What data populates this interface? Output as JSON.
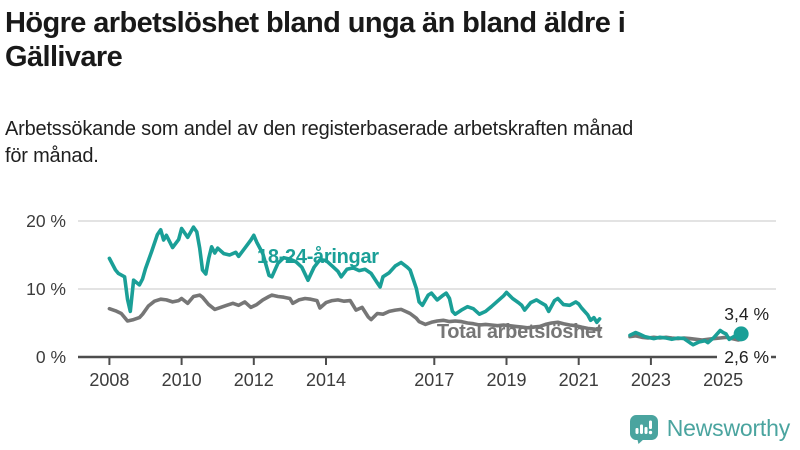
{
  "header": {
    "title": "Högre arbetslöshet bland unga än bland äldre i\nGällivare",
    "subtitle": "Arbetssökande som andel av den registerbaserade arbetskraften månad\nför månad."
  },
  "chart_data": {
    "type": "line",
    "title": "Högre arbetslöshet bland unga än bland äldre i Gällivare",
    "xlabel": "",
    "ylabel": "",
    "x_axis": {
      "tick_years": [
        2008,
        2010,
        2012,
        2014,
        2017,
        2019,
        2021,
        2023,
        2025
      ],
      "tick_labels": [
        "2008",
        "2010",
        "2012",
        "2014",
        "2017",
        "2019",
        "2021",
        "2023",
        "2025"
      ],
      "range": [
        2007.2,
        2026.4
      ]
    },
    "y_axis": {
      "ticks": [
        0,
        10,
        20
      ],
      "tick_labels": [
        "0 %",
        "10 %",
        "20 %"
      ],
      "range": [
        0,
        21
      ],
      "unit": "%",
      "gridlines": [
        10,
        20
      ]
    },
    "series": [
      {
        "name": "18-24-åringar",
        "color": "#1a9f97",
        "end_label": "3,4 %",
        "end_dot": true,
        "label_pos": [
          2012.09,
          13.8
        ],
        "segments": [
          [
            [
              2008.0,
              14.5
            ],
            [
              2008.17,
              12.8
            ],
            [
              2008.25,
              12.3
            ],
            [
              2008.42,
              11.8
            ],
            [
              2008.5,
              8.5
            ],
            [
              2008.58,
              6.7
            ],
            [
              2008.67,
              11.3
            ],
            [
              2008.83,
              10.6
            ],
            [
              2008.92,
              11.5
            ],
            [
              2009.0,
              13.0
            ],
            [
              2009.17,
              15.5
            ],
            [
              2009.33,
              18.0
            ],
            [
              2009.42,
              18.7
            ],
            [
              2009.5,
              17.2
            ],
            [
              2009.58,
              17.9
            ],
            [
              2009.75,
              16.1
            ],
            [
              2009.92,
              17.3
            ],
            [
              2010.0,
              18.9
            ],
            [
              2010.17,
              17.6
            ],
            [
              2010.33,
              19.1
            ],
            [
              2010.42,
              18.4
            ],
            [
              2010.5,
              16.0
            ],
            [
              2010.58,
              12.8
            ],
            [
              2010.67,
              12.2
            ],
            [
              2010.75,
              14.5
            ],
            [
              2010.83,
              16.2
            ],
            [
              2010.92,
              15.3
            ],
            [
              2011.0,
              16.0
            ],
            [
              2011.17,
              15.2
            ],
            [
              2011.33,
              15.0
            ],
            [
              2011.5,
              15.4
            ],
            [
              2011.58,
              14.8
            ],
            [
              2011.75,
              16.0
            ],
            [
              2011.92,
              17.2
            ],
            [
              2012.0,
              17.9
            ],
            [
              2012.08,
              16.9
            ],
            [
              2012.25,
              15.2
            ],
            [
              2012.42,
              12.0
            ],
            [
              2012.5,
              11.8
            ],
            [
              2012.67,
              13.8
            ],
            [
              2012.83,
              14.6
            ],
            [
              2013.0,
              14.4
            ],
            [
              2013.17,
              14.0
            ],
            [
              2013.33,
              13.2
            ],
            [
              2013.5,
              11.3
            ],
            [
              2013.67,
              13.2
            ],
            [
              2013.83,
              14.3
            ],
            [
              2014.0,
              14.2
            ],
            [
              2014.17,
              13.4
            ],
            [
              2014.33,
              12.6
            ],
            [
              2014.42,
              11.8
            ],
            [
              2014.58,
              12.9
            ],
            [
              2014.75,
              13.1
            ],
            [
              2014.92,
              12.7
            ],
            [
              2015.08,
              12.9
            ],
            [
              2015.25,
              12.3
            ],
            [
              2015.42,
              10.9
            ],
            [
              2015.5,
              10.3
            ],
            [
              2015.58,
              11.8
            ],
            [
              2015.75,
              12.4
            ],
            [
              2015.92,
              13.4
            ],
            [
              2016.08,
              13.9
            ],
            [
              2016.25,
              13.2
            ],
            [
              2016.33,
              12.8
            ],
            [
              2016.5,
              10.1
            ],
            [
              2016.58,
              8.1
            ],
            [
              2016.67,
              7.6
            ],
            [
              2016.83,
              9.1
            ],
            [
              2016.92,
              9.4
            ],
            [
              2017.08,
              8.4
            ],
            [
              2017.25,
              9.1
            ],
            [
              2017.33,
              9.4
            ],
            [
              2017.42,
              8.6
            ],
            [
              2017.5,
              6.7
            ],
            [
              2017.58,
              6.3
            ],
            [
              2017.75,
              6.9
            ],
            [
              2017.92,
              7.4
            ],
            [
              2018.08,
              7.1
            ],
            [
              2018.25,
              6.3
            ],
            [
              2018.42,
              6.7
            ],
            [
              2018.58,
              7.4
            ],
            [
              2018.75,
              8.2
            ],
            [
              2018.92,
              9.0
            ],
            [
              2019.0,
              9.5
            ],
            [
              2019.17,
              8.6
            ],
            [
              2019.33,
              8.0
            ],
            [
              2019.42,
              7.6
            ],
            [
              2019.5,
              6.9
            ],
            [
              2019.67,
              8.0
            ],
            [
              2019.83,
              8.4
            ],
            [
              2019.92,
              8.1
            ],
            [
              2020.08,
              7.6
            ],
            [
              2020.17,
              6.7
            ],
            [
              2020.33,
              8.3
            ],
            [
              2020.42,
              8.6
            ],
            [
              2020.58,
              7.7
            ],
            [
              2020.75,
              7.6
            ],
            [
              2020.92,
              8.1
            ],
            [
              2021.0,
              7.8
            ],
            [
              2021.08,
              7.2
            ],
            [
              2021.25,
              6.2
            ],
            [
              2021.33,
              5.4
            ],
            [
              2021.42,
              5.8
            ],
            [
              2021.5,
              5.1
            ],
            [
              2021.58,
              5.6
            ]
          ],
          [
            [
              2022.42,
              3.2
            ],
            [
              2022.58,
              3.6
            ],
            [
              2022.67,
              3.4
            ],
            [
              2022.83,
              3.0
            ],
            [
              2023.08,
              2.7
            ],
            [
              2023.25,
              2.9
            ],
            [
              2023.42,
              2.8
            ],
            [
              2023.58,
              2.6
            ],
            [
              2023.75,
              2.8
            ],
            [
              2023.92,
              2.7
            ],
            [
              2024.08,
              2.1
            ],
            [
              2024.17,
              1.8
            ],
            [
              2024.33,
              2.2
            ],
            [
              2024.5,
              2.4
            ],
            [
              2024.58,
              2.1
            ],
            [
              2024.75,
              2.9
            ],
            [
              2024.92,
              3.9
            ],
            [
              2025.0,
              3.6
            ],
            [
              2025.08,
              3.4
            ],
            [
              2025.17,
              2.6
            ],
            [
              2025.33,
              3.1
            ],
            [
              2025.5,
              3.4
            ]
          ]
        ]
      },
      {
        "name": "Total arbetslöshet",
        "color": "#767676",
        "end_label": "2,6 %",
        "end_dot": false,
        "label_pos": [
          2017.07,
          2.8
        ],
        "segments": [
          [
            [
              2008.0,
              7.1
            ],
            [
              2008.17,
              6.8
            ],
            [
              2008.33,
              6.4
            ],
            [
              2008.5,
              5.3
            ],
            [
              2008.67,
              5.5
            ],
            [
              2008.83,
              5.8
            ],
            [
              2008.92,
              6.3
            ],
            [
              2009.08,
              7.5
            ],
            [
              2009.25,
              8.2
            ],
            [
              2009.42,
              8.5
            ],
            [
              2009.58,
              8.4
            ],
            [
              2009.75,
              8.1
            ],
            [
              2009.92,
              8.3
            ],
            [
              2010.0,
              8.6
            ],
            [
              2010.17,
              7.9
            ],
            [
              2010.33,
              8.9
            ],
            [
              2010.5,
              9.1
            ],
            [
              2010.58,
              8.8
            ],
            [
              2010.75,
              7.7
            ],
            [
              2010.92,
              7.0
            ],
            [
              2011.08,
              7.3
            ],
            [
              2011.25,
              7.6
            ],
            [
              2011.42,
              7.9
            ],
            [
              2011.58,
              7.6
            ],
            [
              2011.75,
              8.1
            ],
            [
              2011.92,
              7.3
            ],
            [
              2012.08,
              7.7
            ],
            [
              2012.25,
              8.4
            ],
            [
              2012.42,
              8.9
            ],
            [
              2012.5,
              9.1
            ],
            [
              2012.67,
              8.9
            ],
            [
              2012.83,
              8.8
            ],
            [
              2013.0,
              8.6
            ],
            [
              2013.08,
              7.9
            ],
            [
              2013.25,
              8.4
            ],
            [
              2013.42,
              8.6
            ],
            [
              2013.58,
              8.5
            ],
            [
              2013.75,
              8.3
            ],
            [
              2013.83,
              7.2
            ],
            [
              2014.0,
              8.0
            ],
            [
              2014.17,
              8.3
            ],
            [
              2014.33,
              8.4
            ],
            [
              2014.5,
              8.2
            ],
            [
              2014.67,
              8.3
            ],
            [
              2014.83,
              6.9
            ],
            [
              2015.0,
              7.3
            ],
            [
              2015.17,
              5.9
            ],
            [
              2015.25,
              5.5
            ],
            [
              2015.42,
              6.4
            ],
            [
              2015.58,
              6.3
            ],
            [
              2015.75,
              6.7
            ],
            [
              2015.92,
              6.9
            ],
            [
              2016.08,
              7.0
            ],
            [
              2016.25,
              6.6
            ],
            [
              2016.33,
              6.4
            ],
            [
              2016.5,
              5.7
            ],
            [
              2016.58,
              5.2
            ],
            [
              2016.75,
              4.8
            ],
            [
              2016.92,
              5.1
            ],
            [
              2017.08,
              5.3
            ],
            [
              2017.25,
              5.4
            ],
            [
              2017.42,
              5.2
            ],
            [
              2017.58,
              5.3
            ],
            [
              2017.75,
              5.2
            ],
            [
              2017.92,
              5.0
            ],
            [
              2018.08,
              4.9
            ],
            [
              2018.25,
              4.7
            ],
            [
              2018.42,
              4.8
            ],
            [
              2018.58,
              4.7
            ],
            [
              2018.75,
              4.6
            ],
            [
              2018.92,
              4.7
            ],
            [
              2019.08,
              4.6
            ],
            [
              2019.25,
              4.5
            ],
            [
              2019.42,
              4.4
            ],
            [
              2019.58,
              4.3
            ],
            [
              2019.75,
              4.4
            ],
            [
              2019.92,
              4.5
            ],
            [
              2020.08,
              4.8
            ],
            [
              2020.25,
              5.0
            ],
            [
              2020.42,
              5.1
            ],
            [
              2020.58,
              4.9
            ],
            [
              2020.75,
              4.7
            ],
            [
              2020.92,
              4.6
            ],
            [
              2021.08,
              4.4
            ],
            [
              2021.25,
              4.2
            ],
            [
              2021.42,
              4.1
            ],
            [
              2021.58,
              4.0
            ]
          ],
          [
            [
              2022.42,
              3.0
            ],
            [
              2022.58,
              3.1
            ],
            [
              2022.75,
              2.9
            ],
            [
              2022.92,
              2.8
            ],
            [
              2023.08,
              2.9
            ],
            [
              2023.25,
              2.8
            ],
            [
              2023.42,
              2.9
            ],
            [
              2023.58,
              2.8
            ],
            [
              2023.75,
              2.7
            ],
            [
              2023.92,
              2.8
            ],
            [
              2024.08,
              2.7
            ],
            [
              2024.25,
              2.6
            ],
            [
              2024.42,
              2.5
            ],
            [
              2024.58,
              2.6
            ],
            [
              2024.75,
              2.7
            ],
            [
              2024.92,
              2.8
            ],
            [
              2025.08,
              2.9
            ],
            [
              2025.25,
              2.7
            ],
            [
              2025.42,
              2.5
            ],
            [
              2025.5,
              2.6
            ]
          ]
        ]
      }
    ],
    "data_gap": [
      2021.6,
      2022.4
    ],
    "legend_position": "inline-labels",
    "grid": true
  },
  "footer": {
    "brand": "Newsworthy"
  },
  "colors": {
    "accent_teal": "#1a9f97",
    "series_gray": "#767676",
    "axis": "#4d4d4d",
    "gridline": "#dadada",
    "tick_text": "#3c3c3c",
    "brand_teal": "#4aa49f"
  }
}
